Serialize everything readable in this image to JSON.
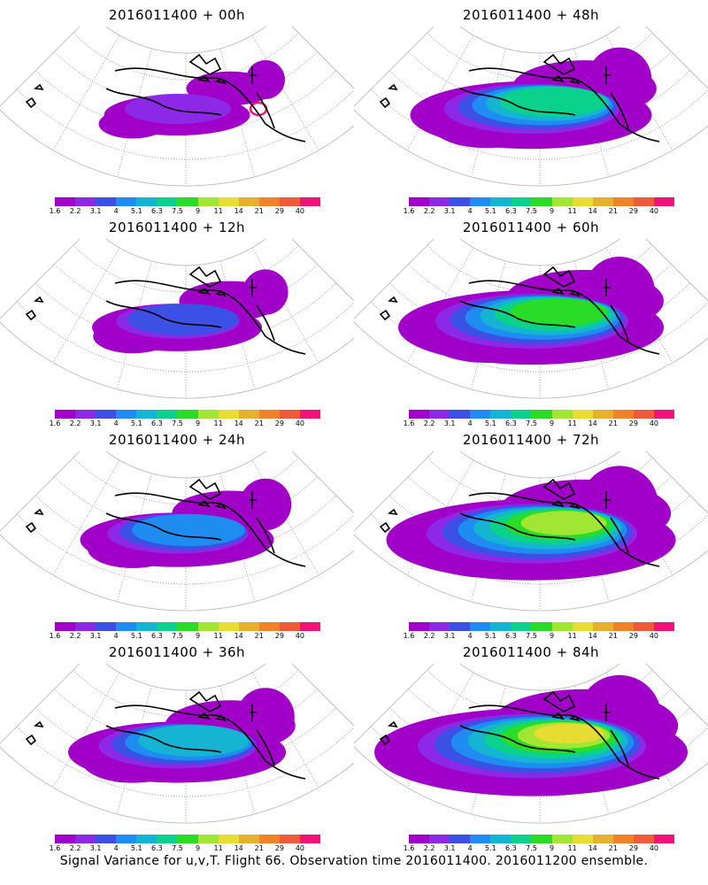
{
  "panels": [
    {
      "title": "2016011400 + 00h",
      "level": 0
    },
    {
      "title": "2016011400 + 48h",
      "level": 4
    },
    {
      "title": "2016011400 + 12h",
      "level": 1
    },
    {
      "title": "2016011400 + 60h",
      "level": 5
    },
    {
      "title": "2016011400 + 24h",
      "level": 2
    },
    {
      "title": "2016011400 + 72h",
      "level": 6
    },
    {
      "title": "2016011400 + 36h",
      "level": 3
    },
    {
      "title": "2016011400 + 84h",
      "level": 7
    }
  ],
  "legend": {
    "labels": [
      "1.6",
      "2.2",
      "3.1",
      "4",
      "5.1",
      "6.3",
      "7.5",
      "9",
      "11",
      "14",
      "21",
      "29",
      "40"
    ],
    "colors": [
      "#a000c8",
      "#8c28e6",
      "#3c50e6",
      "#1e8cf0",
      "#14b4d2",
      "#0ad28c",
      "#28dc28",
      "#a0e632",
      "#e6dc32",
      "#e6af2d",
      "#f08228",
      "#f05a3c",
      "#f0147a"
    ]
  },
  "caption": "Signal Variance for u,v,T. Flight 66. Observation time 2016011400. 2016011200 ensemble."
}
